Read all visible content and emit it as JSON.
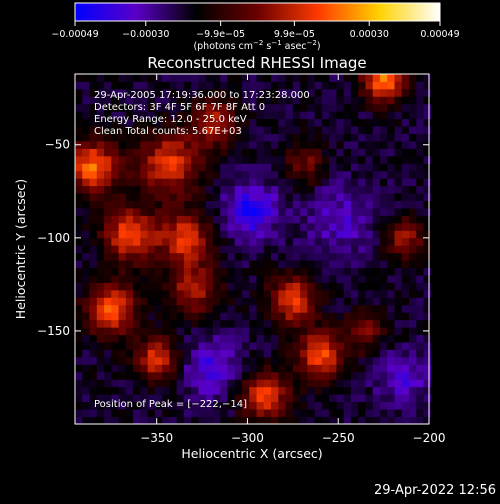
{
  "chart_data": {
    "type": "heatmap",
    "title": "Reconstructed RHESSI Image",
    "xlabel": "Heliocentric X (arcsec)",
    "ylabel": "Heliocentric Y (arcsec)",
    "xlim": [
      -395,
      -200
    ],
    "ylim": [
      -200,
      -12
    ],
    "x_ticks": [
      -350,
      -300,
      -250,
      -200
    ],
    "x_tick_labels": [
      "−350",
      "−300",
      "−250",
      "−200"
    ],
    "y_ticks": [
      -50,
      -100,
      -150
    ],
    "y_tick_labels": [
      "−50",
      "−100",
      "−150"
    ],
    "colorbar": {
      "range": [
        -0.00049,
        0.00049
      ],
      "ticks": [
        -0.00049,
        -0.0003,
        -9.9e-05,
        9.9e-05,
        0.0003,
        0.00049
      ],
      "tick_labels": [
        "−0.00049",
        "−0.00030",
        "−9.9e−05",
        "9.9e−05",
        "0.00030",
        "0.00049"
      ],
      "unit_parts": [
        "(photons cm",
        "−2",
        " s",
        "−1",
        " asec",
        "−2",
        ")"
      ],
      "colors": [
        "#0000ff",
        "#5a00c8",
        "#000000",
        "#6a0000",
        "#ff3a00",
        "#ffd200",
        "#ffffff"
      ]
    },
    "annotations": [
      "29-Apr-2005 17:19:36.000 to 17:23:28.000",
      "Detectors: 3F 4F 5F 6F 7F 8F  Att 0",
      "Energy Range: 12.0 - 25.0 keV",
      "Clean    Total counts: 5.67E+03"
    ],
    "peak_label": "Position of Peak = [−222,−14]",
    "peak": [
      -222,
      -14
    ],
    "pixel_size_arcsec": 4,
    "blobs": [
      {
        "x": -225,
        "y": -15,
        "amp": 1.0,
        "sigma": 8
      },
      {
        "x": -385,
        "y": -62,
        "amp": 0.9,
        "sigma": 10
      },
      {
        "x": -343,
        "y": -60,
        "amp": 0.75,
        "sigma": 12
      },
      {
        "x": -365,
        "y": -98,
        "amp": 0.85,
        "sigma": 10
      },
      {
        "x": -335,
        "y": -100,
        "amp": 0.75,
        "sigma": 10
      },
      {
        "x": -375,
        "y": -138,
        "amp": 0.85,
        "sigma": 10
      },
      {
        "x": -330,
        "y": -128,
        "amp": 0.6,
        "sigma": 10
      },
      {
        "x": -275,
        "y": -133,
        "amp": 0.8,
        "sigma": 9
      },
      {
        "x": -260,
        "y": -163,
        "amp": 0.85,
        "sigma": 9
      },
      {
        "x": -290,
        "y": -185,
        "amp": 0.8,
        "sigma": 9
      },
      {
        "x": -318,
        "y": -38,
        "amp": 0.6,
        "sigma": 9
      },
      {
        "x": -268,
        "y": -60,
        "amp": 0.45,
        "sigma": 8
      },
      {
        "x": -350,
        "y": -165,
        "amp": 0.75,
        "sigma": 8
      },
      {
        "x": -213,
        "y": -100,
        "amp": 0.55,
        "sigma": 8
      },
      {
        "x": -235,
        "y": -150,
        "amp": 0.45,
        "sigma": 8
      },
      {
        "x": -298,
        "y": -85,
        "amp": -0.55,
        "sigma": 10
      },
      {
        "x": -250,
        "y": -90,
        "amp": -0.3,
        "sigma": 14
      },
      {
        "x": -320,
        "y": -170,
        "amp": -0.4,
        "sigma": 11
      },
      {
        "x": -215,
        "y": -175,
        "amp": -0.35,
        "sigma": 10
      }
    ]
  },
  "footer": {
    "timestamp": "29-Apr-2022 12:56"
  }
}
